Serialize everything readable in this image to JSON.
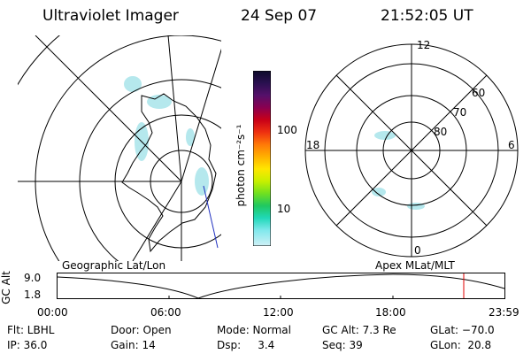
{
  "header": {
    "instrument": "Ultraviolet Imager",
    "date": "24 Sep 07",
    "time": "21:52:05 UT"
  },
  "geo_panel": {
    "caption": "Geographic Lat/Lon"
  },
  "colorbar": {
    "unit_label": "photon cm⁻²s⁻¹",
    "tick_labels": [
      "100",
      "10"
    ],
    "colors": [
      "#0d0a2a",
      "#2a1050",
      "#55106a",
      "#8a0050",
      "#c80018",
      "#ee3010",
      "#ff7808",
      "#ffb000",
      "#ffe600",
      "#c8f000",
      "#70e020",
      "#20c860",
      "#20d8b8",
      "#80e8ec",
      "#d0f0f6"
    ]
  },
  "polar_panel": {
    "caption": "Apex MLat/MLT",
    "mlt_labels": {
      "top": "12",
      "left": "18",
      "right": "6",
      "bottom": "0"
    },
    "lat_labels": [
      "60",
      "70",
      "80"
    ]
  },
  "timeline": {
    "axis_label": "GC Alt",
    "y_labels": [
      "9.0",
      "1.8"
    ],
    "time_ticks": [
      "00:00",
      "06:00",
      "12:00",
      "18:00",
      "23:59"
    ],
    "current_marker_color": "#e00000"
  },
  "info": {
    "filter": "Flt: LBHL",
    "ip": "IP: 36.0",
    "door": "Door: Open",
    "gain": "Gain: 14",
    "mode": "Mode: Normal",
    "dsp": "Dsp:     3.4",
    "gc_alt": "GC Alt: 7.3 Re",
    "seq": "Seq: 39",
    "glat": "GLat: −70.0",
    "glon": "GLon:  20.8"
  }
}
